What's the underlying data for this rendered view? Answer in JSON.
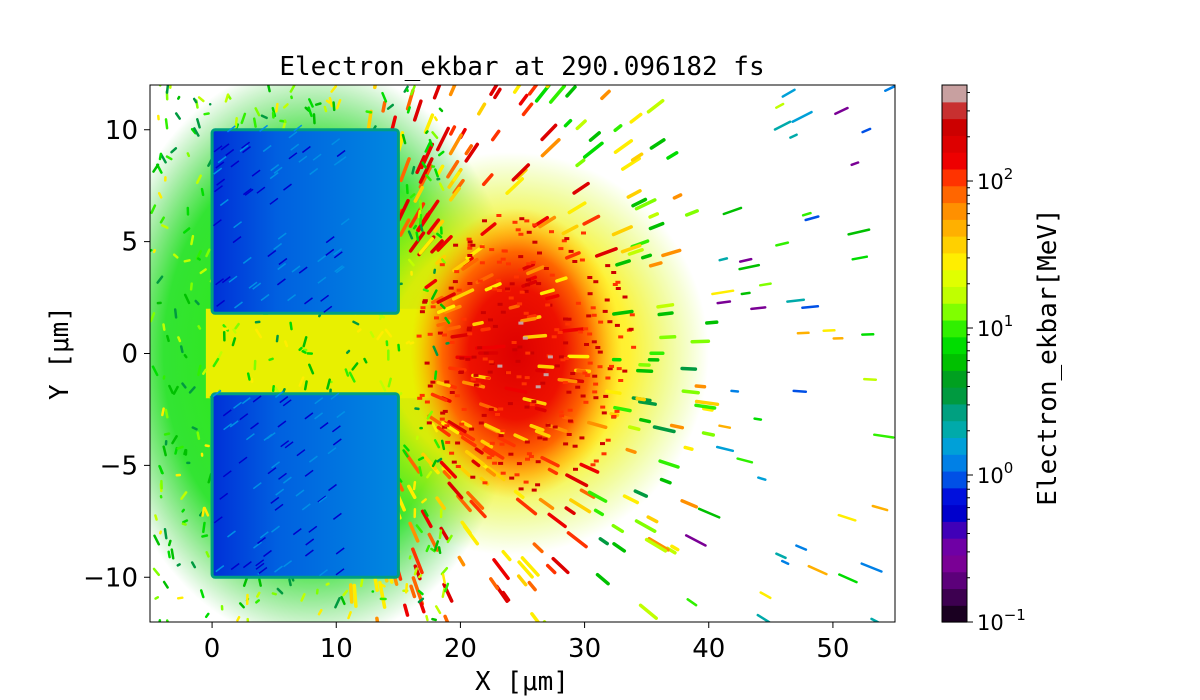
{
  "chart_data": {
    "type": "heatmap",
    "title": "Electron_ekbar at 290.096182 fs",
    "xlabel": "X [μm]",
    "ylabel": "Y [μm]",
    "xlim": [
      -5,
      55
    ],
    "ylim": [
      -12,
      12
    ],
    "x_ticks": [
      {
        "value": 0,
        "label": "0"
      },
      {
        "value": 10,
        "label": "10"
      },
      {
        "value": 20,
        "label": "20"
      },
      {
        "value": 30,
        "label": "30"
      },
      {
        "value": 40,
        "label": "40"
      },
      {
        "value": 50,
        "label": "50"
      }
    ],
    "y_ticks": [
      {
        "value": 10,
        "label": "10"
      },
      {
        "value": 5,
        "label": "5"
      },
      {
        "value": 0,
        "label": "0"
      },
      {
        "value": -5,
        "label": "−5"
      },
      {
        "value": -10,
        "label": "−10"
      }
    ],
    "colorbar": {
      "label": "Electron_ekbar[MeV]",
      "scale": "log",
      "range": [
        0.1,
        450
      ],
      "ticks": [
        {
          "value": 100,
          "label": "10",
          "exp": "2"
        },
        {
          "value": 10,
          "label": "10",
          "exp": "1"
        },
        {
          "value": 1,
          "label": "10",
          "exp": "0"
        },
        {
          "value": 0.1,
          "label": "10",
          "exp": "−1"
        }
      ],
      "colors": [
        "#1a0021",
        "#3d0050",
        "#5c007a",
        "#7a0095",
        "#6f00a5",
        "#4000b8",
        "#0000cc",
        "#0010dd",
        "#0050e6",
        "#0080e6",
        "#00a0d8",
        "#00aaaa",
        "#00a080",
        "#009a40",
        "#00a020",
        "#00c000",
        "#00dd00",
        "#30f000",
        "#80ff00",
        "#c0ff00",
        "#e0ff00",
        "#ffee00",
        "#ffd000",
        "#ffb000",
        "#ff9000",
        "#ff6600",
        "#ff3300",
        "#ee0000",
        "#dd0000",
        "#cc0000",
        "#c83030",
        "#c8a0a0"
      ]
    },
    "regions": [
      {
        "name": "upper-target",
        "x": [
          0,
          15
        ],
        "y": [
          1.8,
          10
        ],
        "value_MeV": 0.9
      },
      {
        "name": "lower-target",
        "x": [
          0,
          15
        ],
        "y": [
          -10,
          -1.8
        ],
        "value_MeV": 0.9
      },
      {
        "name": "hot-spot",
        "x_center": 25,
        "y_center": 0,
        "value_MeV": 300
      }
    ]
  }
}
